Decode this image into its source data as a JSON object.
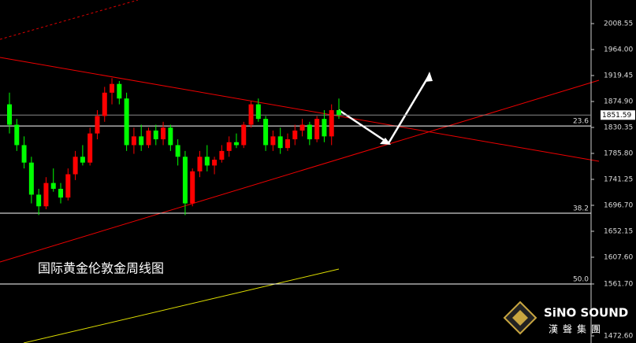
{
  "chart_data": {
    "type": "candlestick",
    "title": "国际黄金伦敦金周线图",
    "brand": "SiNO SOUND",
    "brand_sub": "漢聲集團",
    "up_color": "#ff0000",
    "down_color": "#00ff00",
    "ylim": [
      1460.4,
      2049.05
    ],
    "yticks": [
      2008.55,
      {
        "value": 1964.0,
        "label": "1964.00"
      },
      1919.45,
      {
        "value": 1874.9,
        "label": "1874.90"
      },
      1830.35,
      {
        "value": 1785.8,
        "label": "1785.80"
      },
      1741.25,
      {
        "value": 1696.7,
        "label": "1696.70"
      },
      1652.15,
      {
        "value": 1607.6,
        "label": "1607.60"
      },
      {
        "value": 1561.7,
        "label": "1561.70"
      },
      {
        "value": 1472.6,
        "label": "1472.60"
      }
    ],
    "last_price": 1851.59,
    "levels": [
      {
        "label": "23.6",
        "value": 1832.8
      },
      {
        "label": "38.2",
        "value": 1683.2
      },
      {
        "label": "50.0",
        "value": 1561.7
      }
    ],
    "open": [
      1870,
      1835,
      1800,
      1770,
      1715,
      1695,
      1735,
      1725,
      1710,
      1750,
      1780,
      1770,
      1820,
      1850,
      1890,
      1905,
      1880,
      1800,
      1815,
      1800,
      1825,
      1810,
      1830,
      1800,
      1780,
      1700,
      1755,
      1780,
      1765,
      1775,
      1790,
      1805,
      1800,
      1835,
      1870,
      1845,
      1800,
      1815,
      1795,
      1810,
      1825,
      1835,
      1810,
      1845,
      1815,
      1860
    ],
    "high": [
      1890,
      1845,
      1815,
      1780,
      1725,
      1745,
      1760,
      1735,
      1760,
      1790,
      1800,
      1830,
      1860,
      1900,
      1915,
      1910,
      1890,
      1830,
      1835,
      1830,
      1835,
      1840,
      1835,
      1810,
      1790,
      1760,
      1790,
      1800,
      1780,
      1800,
      1815,
      1820,
      1840,
      1875,
      1880,
      1850,
      1825,
      1830,
      1820,
      1835,
      1845,
      1840,
      1850,
      1860,
      1870,
      1880
    ],
    "low": [
      1820,
      1790,
      1760,
      1700,
      1680,
      1690,
      1720,
      1700,
      1705,
      1740,
      1765,
      1765,
      1810,
      1840,
      1870,
      1870,
      1790,
      1785,
      1790,
      1795,
      1800,
      1800,
      1790,
      1765,
      1680,
      1695,
      1745,
      1755,
      1750,
      1770,
      1780,
      1795,
      1795,
      1830,
      1840,
      1790,
      1790,
      1785,
      1790,
      1800,
      1815,
      1800,
      1805,
      1805,
      1800,
      1845
    ],
    "close": [
      1835,
      1800,
      1770,
      1715,
      1695,
      1735,
      1725,
      1710,
      1750,
      1780,
      1770,
      1820,
      1850,
      1890,
      1905,
      1880,
      1800,
      1815,
      1800,
      1825,
      1810,
      1830,
      1800,
      1780,
      1700,
      1755,
      1780,
      1765,
      1775,
      1790,
      1805,
      1800,
      1835,
      1870,
      1845,
      1800,
      1815,
      1795,
      1810,
      1825,
      1835,
      1810,
      1845,
      1815,
      1860,
      1852
    ]
  }
}
